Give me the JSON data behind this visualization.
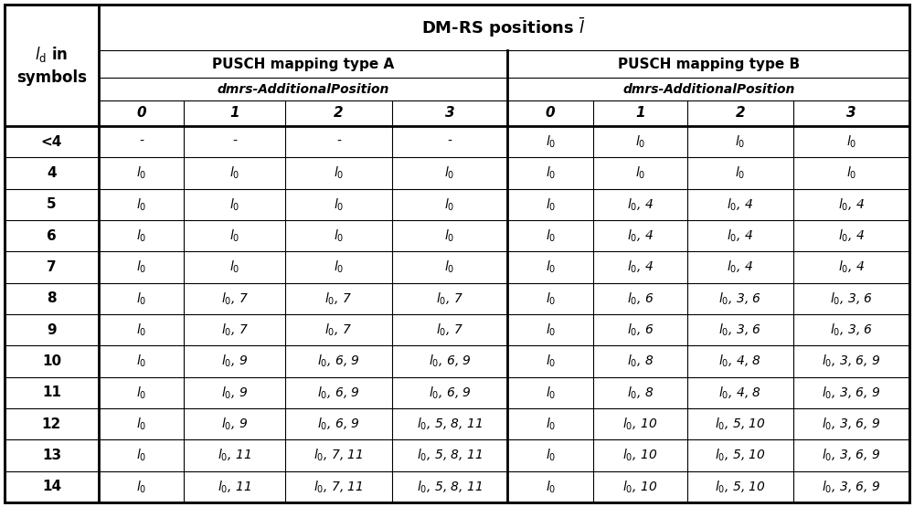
{
  "row_labels": [
    "<4",
    "4",
    "5",
    "6",
    "7",
    "8",
    "9",
    "10",
    "11",
    "12",
    "13",
    "14"
  ],
  "type_a_data": [
    [
      "-",
      "-",
      "-",
      "-"
    ],
    [
      "l_0",
      "l_0",
      "l_0",
      "l_0"
    ],
    [
      "l_0",
      "l_0",
      "l_0",
      "l_0"
    ],
    [
      "l_0",
      "l_0",
      "l_0",
      "l_0"
    ],
    [
      "l_0",
      "l_0",
      "l_0",
      "l_0"
    ],
    [
      "l_0",
      "l_0, 7",
      "l_0, 7",
      "l_0, 7"
    ],
    [
      "l_0",
      "l_0, 7",
      "l_0, 7",
      "l_0, 7"
    ],
    [
      "l_0",
      "l_0, 9",
      "l_0, 6, 9",
      "l_0, 6, 9"
    ],
    [
      "l_0",
      "l_0, 9",
      "l_0, 6, 9",
      "l_0, 6, 9"
    ],
    [
      "l_0",
      "l_0, 9",
      "l_0, 6, 9",
      "l_0, 5, 8, 11"
    ],
    [
      "l_0",
      "l_0, 11",
      "l_0, 7, 11",
      "l_0, 5, 8, 11"
    ],
    [
      "l_0",
      "l_0, 11",
      "l_0, 7, 11",
      "l_0, 5, 8, 11"
    ]
  ],
  "type_b_data": [
    [
      "l_0",
      "l_0",
      "l_0",
      "l_0"
    ],
    [
      "l_0",
      "l_0",
      "l_0",
      "l_0"
    ],
    [
      "l_0",
      "l_0, 4",
      "l_0, 4",
      "l_0, 4"
    ],
    [
      "l_0",
      "l_0, 4",
      "l_0, 4",
      "l_0, 4"
    ],
    [
      "l_0",
      "l_0, 4",
      "l_0, 4",
      "l_0, 4"
    ],
    [
      "l_0",
      "l_0, 6",
      "l_0, 3, 6",
      "l_0, 3, 6"
    ],
    [
      "l_0",
      "l_0, 6",
      "l_0, 3, 6",
      "l_0, 3, 6"
    ],
    [
      "l_0",
      "l_0, 8",
      "l_0, 4, 8",
      "l_0, 3, 6, 9"
    ],
    [
      "l_0",
      "l_0, 8",
      "l_0, 4, 8",
      "l_0, 3, 6, 9"
    ],
    [
      "l_0",
      "l_0, 10",
      "l_0, 5, 10",
      "l_0, 3, 6, 9"
    ],
    [
      "l_0",
      "l_0, 10",
      "l_0, 5, 10",
      "l_0, 3, 6, 9"
    ],
    [
      "l_0",
      "l_0, 10",
      "l_0, 5, 10",
      "l_0, 3, 6, 9"
    ]
  ],
  "subpos_labels": [
    "0",
    "1",
    "2",
    "3"
  ],
  "bg_color": "#ffffff",
  "line_color": "#000000",
  "text_color": "#000000",
  "lw_thin": 0.8,
  "lw_thick": 2.0,
  "header_fontsize": 12,
  "subheader_fontsize": 11,
  "cell_fontsize": 10,
  "row_label_fontsize": 11
}
